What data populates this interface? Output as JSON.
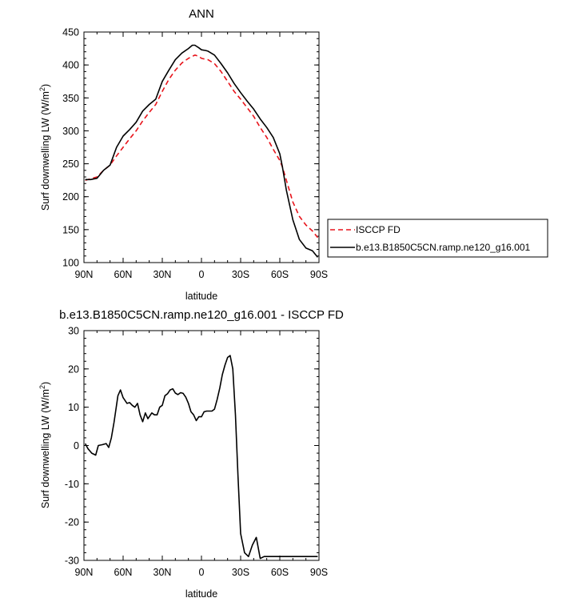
{
  "chart_data": [
    {
      "type": "line",
      "title": "ANN",
      "xlabel": "latitude",
      "ylabel": "Surf downwelling LW (W/m",
      "ylabel_sup": "2",
      "ylabel_close": ")",
      "xlim": [
        90,
        -90
      ],
      "ylim": [
        100,
        450
      ],
      "xticks": [
        90,
        60,
        30,
        0,
        -30,
        -60,
        -90
      ],
      "xtick_labels": [
        "90N",
        "60N",
        "30N",
        "0",
        "30S",
        "60S",
        "90S"
      ],
      "yticks": [
        100,
        150,
        200,
        250,
        300,
        350,
        400,
        450
      ],
      "ytick_labels": [
        "100",
        "150",
        "200",
        "250",
        "300",
        "350",
        "400",
        "450"
      ],
      "legend": [
        "ISCCP FD",
        "b.e13.B1850C5CN.ramp.ne120_g16.001"
      ],
      "legend_placement": "right",
      "series": [
        {
          "name": "ISCCP FD",
          "color": "#e8141b",
          "dash": "dashed",
          "x": [
            89,
            85,
            80,
            75,
            70,
            65,
            60,
            55,
            50,
            45,
            40,
            35,
            30,
            25,
            20,
            15,
            10,
            5,
            2,
            0,
            -5,
            -10,
            -15,
            -20,
            -25,
            -30,
            -35,
            -40,
            -45,
            -50,
            -55,
            -60,
            -62,
            -65,
            -70,
            -75,
            -80,
            -85,
            -89
          ],
          "y": [
            225,
            227,
            230,
            240,
            248,
            262,
            275,
            288,
            300,
            315,
            328,
            340,
            360,
            378,
            392,
            403,
            410,
            415,
            413,
            410,
            408,
            402,
            390,
            375,
            360,
            348,
            335,
            322,
            305,
            290,
            272,
            255,
            245,
            225,
            192,
            170,
            157,
            148,
            138
          ]
        },
        {
          "name": "b.e13.B1850C5CN.ramp.ne120_g16.001",
          "color": "#000000",
          "dash": "solid",
          "x": [
            89,
            85,
            80,
            75,
            70,
            65,
            60,
            55,
            50,
            45,
            40,
            35,
            30,
            25,
            20,
            15,
            10,
            7,
            5,
            2,
            0,
            -3,
            -5,
            -10,
            -15,
            -20,
            -25,
            -30,
            -35,
            -40,
            -45,
            -50,
            -55,
            -60,
            -62,
            -65,
            -70,
            -75,
            -80,
            -85,
            -89
          ],
          "y": [
            226,
            226,
            228,
            240,
            248,
            275,
            292,
            302,
            313,
            330,
            340,
            348,
            375,
            392,
            408,
            418,
            425,
            430,
            430,
            426,
            423,
            422,
            421,
            415,
            402,
            388,
            372,
            358,
            345,
            333,
            318,
            305,
            290,
            265,
            245,
            210,
            165,
            135,
            122,
            118,
            108
          ]
        }
      ]
    },
    {
      "type": "line",
      "title": "b.e13.B1850C5CN.ramp.ne120_g16.001 - ISCCP FD",
      "xlabel": "latitude",
      "ylabel": "Surf downwelling LW (W/m",
      "ylabel_sup": "2",
      "ylabel_close": ")",
      "xlim": [
        90,
        -90
      ],
      "ylim": [
        -30,
        30
      ],
      "xticks": [
        90,
        60,
        30,
        0,
        -30,
        -60,
        -90
      ],
      "xtick_labels": [
        "90N",
        "60N",
        "30N",
        "0",
        "30S",
        "60S",
        "90S"
      ],
      "yticks": [
        -30,
        -20,
        -10,
        0,
        10,
        20,
        30
      ],
      "ytick_labels": [
        "-30",
        "-20",
        "-10",
        "0",
        "10",
        "20",
        "30"
      ],
      "series": [
        {
          "color": "#000000",
          "dash": "solid",
          "x": [
            89,
            87,
            84,
            81,
            79,
            76,
            73,
            71,
            69,
            67,
            64,
            62,
            60,
            57,
            55,
            53,
            51,
            49,
            47,
            45,
            43,
            41,
            38,
            36,
            34,
            32,
            30,
            28,
            26,
            24,
            22,
            20,
            18,
            16,
            14,
            12,
            10,
            8,
            6,
            4,
            2,
            0,
            -2,
            -4,
            -6,
            -8,
            -10,
            -12,
            -14,
            -16,
            -18,
            -20,
            -22,
            -24,
            -26,
            -28,
            -30,
            -33,
            -36,
            -39,
            -42,
            -45,
            -48,
            -51,
            -54,
            -57,
            -60,
            -62,
            -64,
            -66,
            -68,
            -70,
            -72,
            -75,
            -78,
            -81,
            -84,
            -87,
            -89
          ],
          "y": [
            0.5,
            -0.8,
            -2,
            -2.5,
            0,
            0.2,
            0.5,
            -0.5,
            2,
            6,
            13,
            14.5,
            12.5,
            11,
            11.2,
            10.5,
            10,
            11,
            8,
            6.2,
            8.5,
            7,
            8.5,
            8,
            8,
            10,
            10.5,
            13,
            13.5,
            14.5,
            14.8,
            13.7,
            13.3,
            13.8,
            13.6,
            12.6,
            11,
            8.8,
            8,
            6.5,
            7.5,
            7.5,
            8.8,
            9,
            9,
            9,
            9.5,
            12,
            15,
            18.5,
            21,
            23,
            23.5,
            20,
            8,
            -8,
            -23,
            -28,
            -29,
            -26,
            -24,
            -29.5,
            -29,
            -29,
            -29,
            -29,
            -29,
            -29,
            -29,
            -29,
            -29,
            -29,
            -29,
            -29,
            -29,
            -29,
            -29,
            -29,
            -29
          ]
        }
      ]
    }
  ]
}
